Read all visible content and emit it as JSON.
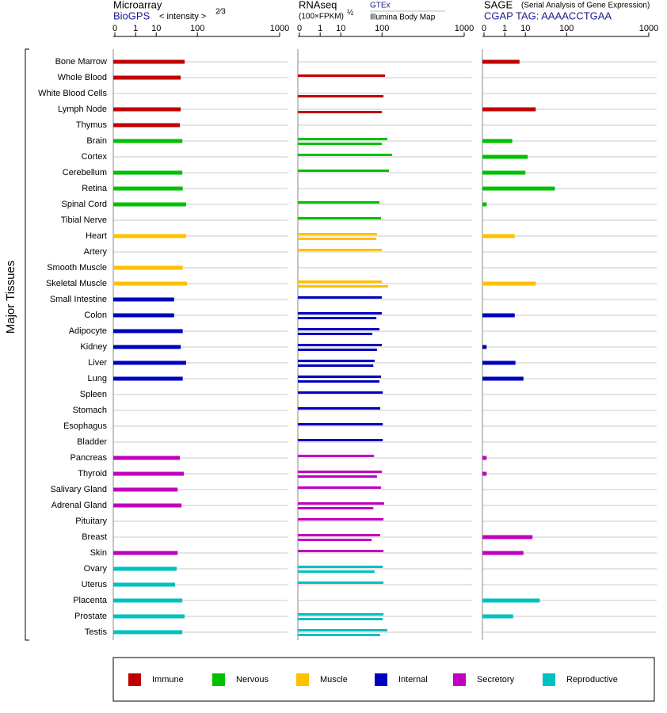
{
  "chart_data": {
    "type": "bar",
    "y_label": "Major Tissues",
    "categories": [
      "Bone Marrow",
      "Whole Blood",
      "White Blood Cells",
      "Lymph Node",
      "Thymus",
      "Brain",
      "Cortex",
      "Cerebellum",
      "Retina",
      "Spinal Cord",
      "Tibial Nerve",
      "Heart",
      "Artery",
      "Smooth Muscle",
      "Skeletal Muscle",
      "Small Intestine",
      "Colon",
      "Adipocyte",
      "Kidney",
      "Liver",
      "Lung",
      "Spleen",
      "Stomach",
      "Esophagus",
      "Bladder",
      "Pancreas",
      "Thyroid",
      "Salivary Gland",
      "Adrenal Gland",
      "Pituitary",
      "Breast",
      "Skin",
      "Ovary",
      "Uterus",
      "Placenta",
      "Prostate",
      "Testis"
    ],
    "category_groups": [
      0,
      0,
      0,
      0,
      0,
      1,
      1,
      1,
      1,
      1,
      1,
      2,
      2,
      2,
      2,
      3,
      3,
      3,
      3,
      3,
      3,
      3,
      3,
      3,
      3,
      4,
      4,
      4,
      4,
      4,
      4,
      4,
      5,
      5,
      5,
      5,
      5
    ],
    "groups": [
      {
        "name": "Immune",
        "color": "#c00000"
      },
      {
        "name": "Nervous",
        "color": "#00c000"
      },
      {
        "name": "Muscle",
        "color": "#ffc000"
      },
      {
        "name": "Internal",
        "color": "#0000c0"
      },
      {
        "name": "Secretory",
        "color": "#c000c0"
      },
      {
        "name": "Reproductive",
        "color": "#00c0c0"
      }
    ],
    "panels": [
      {
        "title": "Microarray",
        "subtitle": "BioGPS",
        "axis_label": "< intensity >",
        "axis_label_power": "2⁄3",
        "xlim": [
          0,
          1000
        ],
        "xticks": [
          0,
          1,
          10,
          100,
          1000
        ],
        "scale_exponent": 0.3,
        "series": [
          {
            "values": [
              57,
              47,
              null,
              47,
              45,
              51,
              null,
              51,
              52,
              61,
              null,
              61,
              null,
              52,
              64,
              33,
              33,
              52,
              47,
              61,
              52,
              null,
              null,
              null,
              null,
              45,
              55,
              40,
              49,
              null,
              null,
              40,
              38,
              35,
              51,
              57,
              51
            ]
          }
        ]
      },
      {
        "title": "RNAseq",
        "axis_label": "(100×FPKM)",
        "axis_label_power": "½",
        "xlim": [
          0,
          1000
        ],
        "xticks": [
          0,
          1,
          10,
          100,
          1000
        ],
        "scale_exponent": 0.3,
        "series": [
          {
            "name": "GTEx",
            "values": [
              null,
              113,
              null,
              null,
              null,
              123,
              147,
              131,
              null,
              90,
              96,
              81,
              99,
              null,
              99,
              99,
              99,
              90,
              99,
              73,
              96,
              103,
              93,
              103,
              103,
              71,
              99,
              96,
              109,
              106,
              93,
              106,
              103,
              106,
              null,
              106,
              123
            ]
          },
          {
            "name": "Illumina Body Map",
            "values": [
              null,
              null,
              106,
              99,
              null,
              99,
              null,
              null,
              null,
              null,
              null,
              79,
              null,
              null,
              127,
              null,
              79,
              66,
              81,
              69,
              90,
              null,
              null,
              null,
              null,
              null,
              81,
              null,
              69,
              null,
              64,
              null,
              73,
              null,
              null,
              103,
              93
            ]
          }
        ]
      },
      {
        "title": "SAGE",
        "note": "(Serial Analysis of Gene Expression)",
        "subtitle": "CGAP TAG: AAAACCTGAA",
        "xlim": [
          0,
          1000
        ],
        "xticks": [
          0,
          1,
          10,
          100,
          1000
        ],
        "scale_exponent": 0.3,
        "series": [
          {
            "values": [
              6.0,
              null,
              null,
              21,
              null,
              2.8,
              12,
              10,
              60,
              0.001,
              null,
              3.7,
              null,
              null,
              21,
              null,
              3.7,
              null,
              0.001,
              4.0,
              8.5,
              null,
              null,
              null,
              null,
              0.001,
              0.001,
              null,
              null,
              null,
              17,
              8.5,
              null,
              null,
              27,
              3.1,
              null
            ]
          }
        ]
      }
    ]
  }
}
